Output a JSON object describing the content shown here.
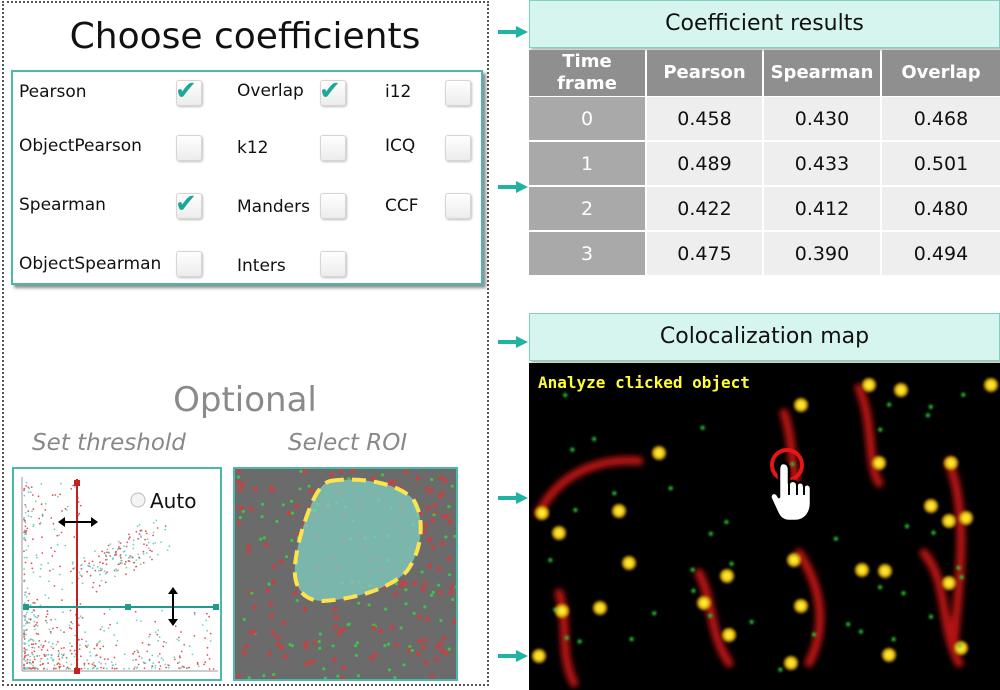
{
  "title": "Choose coefficients",
  "coefficients": [
    {
      "label": "Pearson",
      "checked": true
    },
    {
      "label": "Overlap",
      "checked": true
    },
    {
      "label": "i12",
      "checked": false
    },
    {
      "label": "ObjectPearson",
      "checked": false
    },
    {
      "label": "k12",
      "checked": false
    },
    {
      "label": "ICQ",
      "checked": false
    },
    {
      "label": "Spearman",
      "checked": true
    },
    {
      "label": "Manders",
      "checked": false
    },
    {
      "label": "CCF",
      "checked": false
    },
    {
      "label": "ObjectSpearman",
      "checked": false
    },
    {
      "label": "Inters",
      "checked": false
    }
  ],
  "check_glyph": "✔",
  "optional": {
    "heading": "Optional",
    "threshold_label": "Set threshold",
    "roi_label": "Select ROI",
    "auto_label": "Auto"
  },
  "results": {
    "header": "Coefficient results",
    "columns": [
      "Time frame",
      "Pearson",
      "Spearman",
      "Overlap"
    ],
    "rows": [
      [
        "0",
        "0.458",
        "0.430",
        "0.468"
      ],
      [
        "1",
        "0.489",
        "0.433",
        "0.501"
      ],
      [
        "2",
        "0.422",
        "0.412",
        "0.480"
      ],
      [
        "3",
        "0.475",
        "0.390",
        "0.494"
      ]
    ]
  },
  "map": {
    "header": "Colocalization map",
    "caption": "Analyze clicked object"
  },
  "colors": {
    "accent": "#4ab9ab",
    "arrow": "#1fb3a2",
    "check": "#1ba79a",
    "header_bg": "#d7f5ef",
    "caption": "#ffff33"
  }
}
